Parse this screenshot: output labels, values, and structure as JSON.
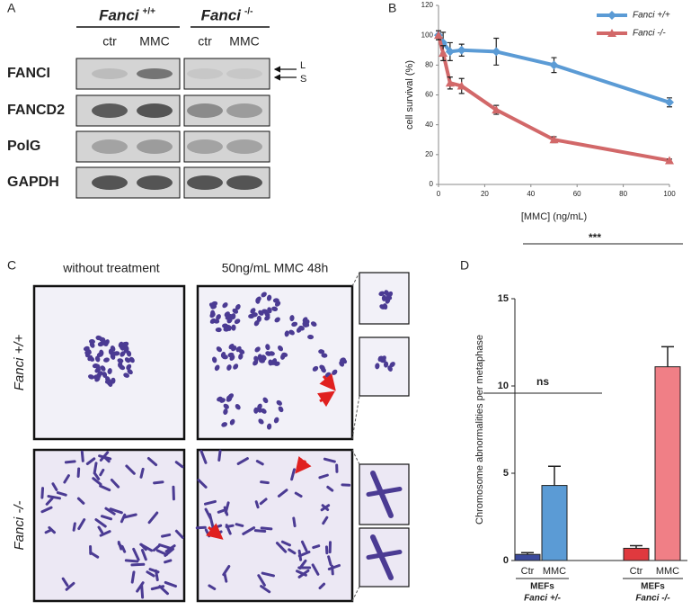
{
  "panel_a": {
    "label": "A",
    "headers": [
      {
        "name": "Fanci",
        "genotype": "+/+"
      },
      {
        "name": "Fanci",
        "genotype": "-/-"
      }
    ],
    "lanes": [
      "ctr",
      "MMC",
      "ctr",
      "MMC"
    ],
    "rows": [
      "FANCI",
      "FANCD2",
      "PolG",
      "GAPDH"
    ],
    "arrows": [
      "L",
      "S"
    ]
  },
  "panel_c": {
    "label": "C",
    "columns": [
      "without treatment",
      "50ng/mL MMC 48h"
    ],
    "rows": [
      "Fanci +/+",
      "Fanci -/-"
    ]
  },
  "chart_data": [
    {
      "type": "line",
      "panel_label": "B",
      "y_label": "cell survival (%)",
      "x_label": "[MMC] (ng/mL)",
      "x": [
        0,
        2,
        5,
        10,
        25,
        50,
        100
      ],
      "series": [
        {
          "name": "Fanci +/+",
          "color": "#5b9bd5",
          "marker": "diamond",
          "values": [
            100,
            95,
            89,
            90,
            89,
            80,
            55
          ],
          "errors": [
            3,
            7,
            6,
            4,
            9,
            5,
            3
          ]
        },
        {
          "name": "Fanci -/-",
          "color": "#d26869",
          "marker": "triangle",
          "values": [
            100,
            88,
            68,
            66,
            50,
            30,
            16
          ],
          "errors": [
            3,
            5,
            4,
            5,
            3,
            2,
            1
          ]
        }
      ],
      "xlim": [
        0,
        100
      ],
      "xticks": [
        0,
        20,
        40,
        60,
        80,
        100
      ],
      "ylim": [
        0,
        120
      ],
      "yticks": [
        0,
        20,
        40,
        60,
        80,
        100,
        120
      ],
      "grid": false,
      "legend": "top-right"
    },
    {
      "type": "bar",
      "panel_label": "D",
      "y_label": "Chromosome abnormalities per metaphase",
      "categories": [
        "Ctr",
        "MMC",
        "Ctr",
        "MMC"
      ],
      "values": [
        0.35,
        4.3,
        0.7,
        11.1
      ],
      "errors": [
        0.1,
        1.1,
        0.15,
        1.15
      ],
      "colors": [
        "#3b4a9c",
        "#5b9bd5",
        "#e0393e",
        "#f07f86"
      ],
      "groups": [
        {
          "label": "MEFs",
          "sublabel": "Fanci +/-"
        },
        {
          "label": "MEFs",
          "sublabel": "Fanci -/-"
        }
      ],
      "annotations": [
        "ns",
        "***"
      ],
      "ylim": [
        0,
        15
      ],
      "yticks": [
        0,
        5,
        10,
        15
      ],
      "grid": false
    }
  ]
}
